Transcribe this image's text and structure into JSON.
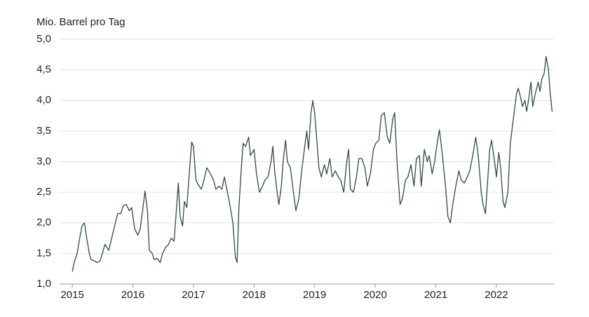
{
  "chart_data": {
    "type": "line",
    "y_label": "Mio. Barrel pro Tag",
    "xlim": [
      2014.79,
      2022.95
    ],
    "xticks": [
      2015,
      2016,
      2017,
      2018,
      2019,
      2020,
      2021,
      2022
    ],
    "ylim": [
      1,
      5
    ],
    "yticks": [
      {
        "value": 1,
        "label": "1,0"
      },
      {
        "value": 1.5,
        "label": "1,5"
      },
      {
        "value": 2,
        "label": "2,0"
      },
      {
        "value": 2.5,
        "label": "2,5"
      },
      {
        "value": 3,
        "label": "3,0"
      },
      {
        "value": 3.5,
        "label": "3,5"
      },
      {
        "value": 4,
        "label": "4,0"
      },
      {
        "value": 4.5,
        "label": "4,5"
      },
      {
        "value": 5,
        "label": "5,0"
      }
    ],
    "grid": true,
    "series": [
      {
        "color": "#2f4a45",
        "x": [
          2015.0,
          2015.03,
          2015.08,
          2015.13,
          2015.16,
          2015.2,
          2015.23,
          2015.28,
          2015.31,
          2015.36,
          2015.41,
          2015.46,
          2015.51,
          2015.54,
          2015.6,
          2015.65,
          2015.71,
          2015.75,
          2015.8,
          2015.84,
          2015.89,
          2015.94,
          2015.98,
          2016.03,
          2016.08,
          2016.12,
          2016.16,
          2016.2,
          2016.24,
          2016.27,
          2016.32,
          2016.35,
          2016.4,
          2016.45,
          2016.49,
          2016.54,
          2016.59,
          2016.63,
          2016.68,
          2016.71,
          2016.75,
          2016.78,
          2016.82,
          2016.85,
          2016.89,
          2016.93,
          2016.97,
          2017.0,
          2017.04,
          2017.08,
          2017.13,
          2017.16,
          2017.22,
          2017.28,
          2017.33,
          2017.37,
          2017.42,
          2017.47,
          2017.51,
          2017.56,
          2017.6,
          2017.65,
          2017.69,
          2017.72,
          2017.75,
          2017.79,
          2017.82,
          2017.86,
          2017.91,
          2017.94,
          2018.0,
          2018.04,
          2018.09,
          2018.14,
          2018.18,
          2018.23,
          2018.28,
          2018.31,
          2018.34,
          2018.38,
          2018.41,
          2018.45,
          2018.48,
          2018.52,
          2018.55,
          2018.6,
          2018.65,
          2018.69,
          2018.74,
          2018.78,
          2018.83,
          2018.87,
          2018.9,
          2018.94,
          2018.97,
          2019.0,
          2019.04,
          2019.07,
          2019.11,
          2019.16,
          2019.2,
          2019.25,
          2019.29,
          2019.34,
          2019.39,
          2019.43,
          2019.48,
          2019.53,
          2019.56,
          2019.59,
          2019.64,
          2019.69,
          2019.73,
          2019.78,
          2019.83,
          2019.87,
          2019.92,
          2019.97,
          2020.01,
          2020.06,
          2020.1,
          2020.15,
          2020.2,
          2020.24,
          2020.29,
          2020.32,
          2020.36,
          2020.41,
          2020.45,
          2020.5,
          2020.54,
          2020.59,
          2020.64,
          2020.68,
          2020.73,
          2020.76,
          2020.81,
          2020.86,
          2020.89,
          2020.94,
          2020.98,
          2021.03,
          2021.06,
          2021.11,
          2021.16,
          2021.2,
          2021.24,
          2021.28,
          2021.33,
          2021.38,
          2021.42,
          2021.47,
          2021.52,
          2021.56,
          2021.61,
          2021.66,
          2021.7,
          2021.75,
          2021.78,
          2021.82,
          2021.85,
          2021.89,
          2021.92,
          2021.97,
          2022.0,
          2022.04,
          2022.07,
          2022.11,
          2022.14,
          2022.19,
          2022.23,
          2022.28,
          2022.33,
          2022.36,
          2022.4,
          2022.43,
          2022.47,
          2022.5,
          2022.53,
          2022.57,
          2022.6,
          2022.64,
          2022.69,
          2022.72,
          2022.75,
          2022.79,
          2022.82,
          2022.86,
          2022.89,
          2022.92
        ],
        "values": [
          1.2,
          1.35,
          1.5,
          1.8,
          1.95,
          2.0,
          1.8,
          1.5,
          1.4,
          1.38,
          1.35,
          1.38,
          1.55,
          1.65,
          1.55,
          1.75,
          2.0,
          2.15,
          2.15,
          2.28,
          2.3,
          2.2,
          2.25,
          1.9,
          1.8,
          1.9,
          2.2,
          2.52,
          2.2,
          1.55,
          1.5,
          1.4,
          1.42,
          1.35,
          1.5,
          1.6,
          1.65,
          1.75,
          1.7,
          2.1,
          2.65,
          2.1,
          1.95,
          2.35,
          2.25,
          2.8,
          3.32,
          3.25,
          2.7,
          2.62,
          2.55,
          2.65,
          2.9,
          2.8,
          2.7,
          2.55,
          2.6,
          2.55,
          2.75,
          2.5,
          2.3,
          2.0,
          1.45,
          1.35,
          2.25,
          2.9,
          3.3,
          3.25,
          3.4,
          3.1,
          3.2,
          2.8,
          2.5,
          2.6,
          2.7,
          2.75,
          3.0,
          3.25,
          2.85,
          2.5,
          2.3,
          2.6,
          3.0,
          3.35,
          3.0,
          2.9,
          2.5,
          2.2,
          2.4,
          2.8,
          3.2,
          3.5,
          3.2,
          3.8,
          4.0,
          3.8,
          3.3,
          2.9,
          2.75,
          2.95,
          2.8,
          3.05,
          2.75,
          2.85,
          2.75,
          2.7,
          2.5,
          3.0,
          3.2,
          2.55,
          2.5,
          2.75,
          3.05,
          3.05,
          2.9,
          2.6,
          2.8,
          3.2,
          3.3,
          3.35,
          3.75,
          3.8,
          3.4,
          3.3,
          3.7,
          3.8,
          3.0,
          2.3,
          2.4,
          2.7,
          2.75,
          2.95,
          2.6,
          3.05,
          3.1,
          2.6,
          3.2,
          3.0,
          3.1,
          2.8,
          3.0,
          3.35,
          3.52,
          3.1,
          2.6,
          2.1,
          2.0,
          2.3,
          2.6,
          2.85,
          2.7,
          2.65,
          2.75,
          2.85,
          3.1,
          3.4,
          3.1,
          2.5,
          2.3,
          2.15,
          2.6,
          3.2,
          3.35,
          3.0,
          2.75,
          3.15,
          2.9,
          2.35,
          2.25,
          2.5,
          3.3,
          3.7,
          4.1,
          4.2,
          4.05,
          3.9,
          4.0,
          3.82,
          4.0,
          4.3,
          3.9,
          4.1,
          4.3,
          4.15,
          4.35,
          4.45,
          4.72,
          4.5,
          4.1,
          3.82
        ]
      }
    ]
  }
}
